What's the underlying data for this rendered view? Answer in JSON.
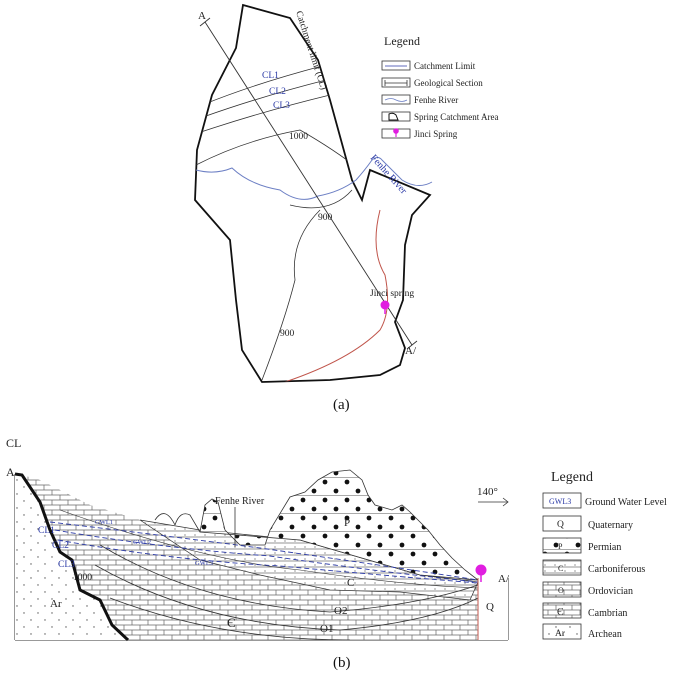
{
  "map": {
    "caption": "(a)",
    "point_a": "A",
    "point_a_prime": "A/",
    "catchment_label": "Catchment limit (CL)",
    "cl_labels": [
      "CL1",
      "CL2",
      "CL3"
    ],
    "contours": [
      "1000",
      "900",
      "900"
    ],
    "river_label": "Fenhe River",
    "spring_label": "Jinci spring",
    "legend": {
      "title": "Legend",
      "items": [
        "Catchment Limit",
        "Geological Section",
        "Fenhe River",
        "Spring Catchment Area",
        "Jinci Spring"
      ]
    }
  },
  "section": {
    "caption": "(b)",
    "cl": "CL",
    "point_a": "A",
    "point_a_prime": "A/",
    "river_label": "Fenhe River",
    "direction": "140°",
    "contour": "1000",
    "cl_labels": [
      "CL1",
      "CL2",
      "CL3"
    ],
    "gwl_labels": [
      "GWL1",
      "GWL2",
      "GWL3"
    ],
    "units": [
      "Ar",
      "P",
      "C",
      "O2",
      "O1",
      "Є",
      "Q"
    ],
    "legend": {
      "title": "Legend",
      "items": [
        {
          "symbol": "GWL3",
          "label": "Ground Water Level"
        },
        {
          "symbol": "Q",
          "label": "Quaternary"
        },
        {
          "symbol": "P",
          "label": "Permian"
        },
        {
          "symbol": "C",
          "label": "Carboniferous"
        },
        {
          "symbol": "O",
          "label": "Ordovician"
        },
        {
          "symbol": "Є",
          "label": "Cambrian"
        },
        {
          "symbol": "Ar",
          "label": "Archean"
        }
      ]
    }
  },
  "colors": {
    "blue_text": "#2b3aa6",
    "river": "#6c7fc4",
    "spring": "#e01ee0",
    "boundary_red": "#c0554b"
  }
}
